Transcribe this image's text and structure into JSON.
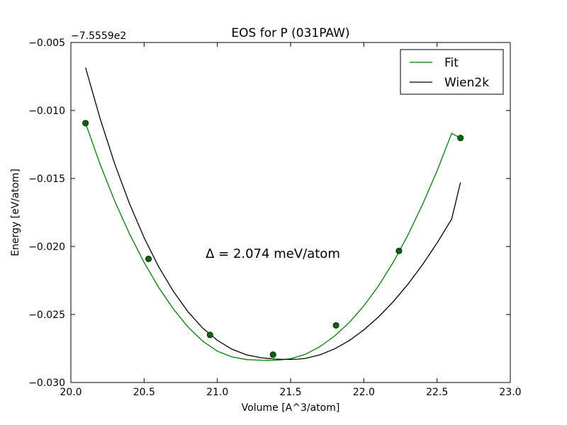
{
  "chart_data": {
    "type": "line",
    "title": "EOS for P (031PAW)",
    "xlabel": "Volume [A^3/atom]",
    "ylabel": "Energy [eV/atom]",
    "offset_label": "−7.5559e2",
    "xlim": [
      20.0,
      23.0
    ],
    "ylim": [
      -0.03,
      -0.005
    ],
    "x_ticks": [
      20.0,
      20.5,
      21.0,
      21.5,
      22.0,
      22.5,
      23.0
    ],
    "x_tick_labels": [
      "20.0",
      "20.5",
      "21.0",
      "21.5",
      "22.0",
      "22.5",
      "23.0"
    ],
    "y_ticks": [
      -0.03,
      -0.025,
      -0.02,
      -0.015,
      -0.01,
      -0.005
    ],
    "y_tick_labels": [
      "−0.030",
      "−0.025",
      "−0.020",
      "−0.015",
      "−0.010",
      "−0.005"
    ],
    "grid": false,
    "legend_position": "top-right",
    "annotation": "Δ = 2.074 meV/atom",
    "points": {
      "color": "#006400",
      "x": [
        20.1,
        20.53,
        20.95,
        21.38,
        21.81,
        22.24,
        22.66
      ],
      "y": [
        -0.01093,
        -0.02091,
        -0.0265,
        -0.02795,
        -0.0258,
        -0.02032,
        -0.01202
      ]
    },
    "series": [
      {
        "name": "Fit",
        "color": "#008000",
        "x": [
          20.1,
          20.2,
          20.3,
          20.4,
          20.5,
          20.6,
          20.7,
          20.8,
          20.9,
          21.0,
          21.1,
          21.2,
          21.3,
          21.35,
          21.4,
          21.45,
          21.5,
          21.6,
          21.7,
          21.8,
          21.9,
          22.0,
          22.1,
          22.2,
          22.3,
          22.4,
          22.5,
          22.6,
          22.66
        ],
        "y": [
          -0.01093,
          -0.01396,
          -0.01667,
          -0.01907,
          -0.02117,
          -0.02302,
          -0.0246,
          -0.02592,
          -0.02696,
          -0.0277,
          -0.02812,
          -0.02832,
          -0.02836,
          -0.02837,
          -0.02836,
          -0.02832,
          -0.02825,
          -0.02793,
          -0.02737,
          -0.02659,
          -0.02559,
          -0.02437,
          -0.0229,
          -0.02117,
          -0.01918,
          -0.01693,
          -0.01443,
          -0.01168,
          -0.01202
        ]
      },
      {
        "name": "Wien2k",
        "color": "#000000",
        "x": [
          20.1,
          20.2,
          20.3,
          20.4,
          20.5,
          20.6,
          20.7,
          20.8,
          20.9,
          21.0,
          21.1,
          21.2,
          21.3,
          21.4,
          21.45,
          21.5,
          21.55,
          21.6,
          21.7,
          21.8,
          21.9,
          22.0,
          22.1,
          22.2,
          22.3,
          22.4,
          22.5,
          22.6,
          22.66
        ],
        "y": [
          -0.00685,
          -0.0106,
          -0.01395,
          -0.01685,
          -0.01935,
          -0.0215,
          -0.0233,
          -0.0248,
          -0.026,
          -0.0269,
          -0.02755,
          -0.02797,
          -0.02818,
          -0.02828,
          -0.0283,
          -0.0283,
          -0.02828,
          -0.02823,
          -0.02797,
          -0.02753,
          -0.02692,
          -0.02613,
          -0.02518,
          -0.02407,
          -0.02279,
          -0.02135,
          -0.01974,
          -0.01798,
          -0.01529
        ]
      }
    ]
  }
}
